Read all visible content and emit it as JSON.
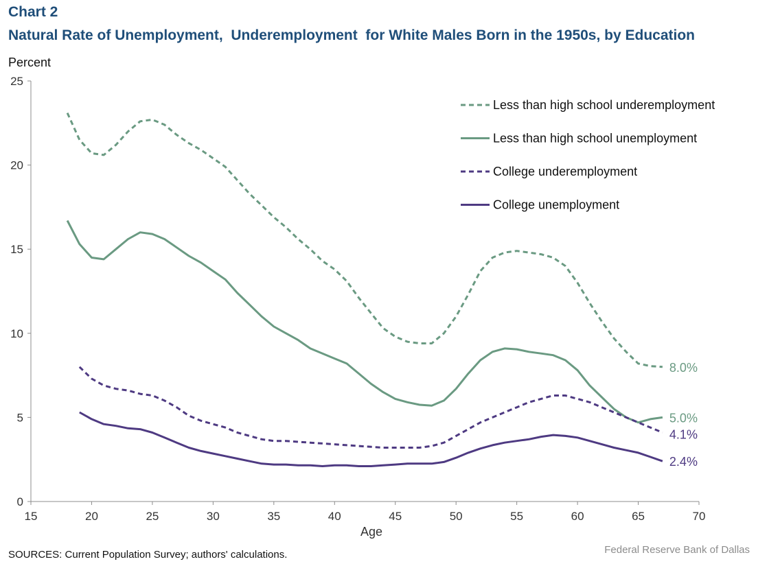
{
  "header": {
    "chart_label": "Chart 2",
    "title": "Natural Rate of Unemployment,  Underemployment  for White Males Born in the 1950s, by Education"
  },
  "footer": {
    "source": "SOURCES:  Current Population Survey; authors' calculations.",
    "credit": "Federal Reserve  Bank of Dallas"
  },
  "chart_data": {
    "type": "line",
    "ylabel": "Percent",
    "xlabel": "Age",
    "xlim": [
      15,
      70
    ],
    "ylim": [
      0,
      25
    ],
    "x_ticks": [
      15,
      20,
      25,
      30,
      35,
      40,
      45,
      50,
      55,
      60,
      65,
      70
    ],
    "y_ticks": [
      0,
      5,
      10,
      15,
      20,
      25
    ],
    "grid": false,
    "legend_position": "top-right",
    "series": [
      {
        "name": "Less than high school underemployment",
        "color": "#6a9a82",
        "dash": true,
        "end_label": "8.0%",
        "x": [
          18,
          19,
          20,
          21,
          22,
          23,
          24,
          25,
          26,
          27,
          28,
          29,
          30,
          31,
          32,
          33,
          34,
          35,
          36,
          37,
          38,
          39,
          40,
          41,
          42,
          43,
          44,
          45,
          46,
          47,
          48,
          49,
          50,
          51,
          52,
          53,
          54,
          55,
          56,
          57,
          58,
          59,
          60,
          61,
          62,
          63,
          64,
          65,
          66,
          67
        ],
        "values": [
          23.1,
          21.5,
          20.7,
          20.6,
          21.2,
          22.0,
          22.6,
          22.7,
          22.4,
          21.8,
          21.3,
          20.9,
          20.4,
          19.9,
          19.1,
          18.3,
          17.6,
          16.9,
          16.3,
          15.6,
          15.0,
          14.3,
          13.8,
          13.1,
          12.1,
          11.2,
          10.3,
          9.8,
          9.5,
          9.4,
          9.4,
          10.0,
          11.0,
          12.3,
          13.7,
          14.5,
          14.8,
          14.9,
          14.8,
          14.7,
          14.5,
          14.0,
          13.0,
          11.8,
          10.7,
          9.7,
          8.9,
          8.2,
          8.05,
          8.0
        ]
      },
      {
        "name": "Less than high school unemployment",
        "color": "#6a9a82",
        "dash": false,
        "end_label": "5.0%",
        "x": [
          18,
          19,
          20,
          21,
          22,
          23,
          24,
          25,
          26,
          27,
          28,
          29,
          30,
          31,
          32,
          33,
          34,
          35,
          36,
          37,
          38,
          39,
          40,
          41,
          42,
          43,
          44,
          45,
          46,
          47,
          48,
          49,
          50,
          51,
          52,
          53,
          54,
          55,
          56,
          57,
          58,
          59,
          60,
          61,
          62,
          63,
          64,
          65,
          66,
          67
        ],
        "values": [
          16.7,
          15.3,
          14.5,
          14.4,
          15.0,
          15.6,
          16.0,
          15.9,
          15.6,
          15.1,
          14.6,
          14.2,
          13.7,
          13.2,
          12.4,
          11.7,
          11.0,
          10.4,
          10.0,
          9.6,
          9.1,
          8.8,
          8.5,
          8.2,
          7.6,
          7.0,
          6.5,
          6.1,
          5.9,
          5.75,
          5.7,
          6.0,
          6.7,
          7.6,
          8.4,
          8.9,
          9.1,
          9.05,
          8.9,
          8.8,
          8.7,
          8.4,
          7.8,
          6.9,
          6.2,
          5.5,
          5.0,
          4.7,
          4.9,
          5.0
        ]
      },
      {
        "name": "College underemployment",
        "color": "#4e3a82",
        "dash": true,
        "end_label": "4.1%",
        "x": [
          19,
          20,
          21,
          22,
          23,
          24,
          25,
          26,
          27,
          28,
          29,
          30,
          31,
          32,
          33,
          34,
          35,
          36,
          37,
          38,
          39,
          40,
          41,
          42,
          43,
          44,
          45,
          46,
          47,
          48,
          49,
          50,
          51,
          52,
          53,
          54,
          55,
          56,
          57,
          58,
          59,
          60,
          61,
          62,
          63,
          64,
          65,
          66,
          67
        ],
        "values": [
          8.0,
          7.3,
          6.9,
          6.7,
          6.6,
          6.4,
          6.3,
          6.0,
          5.6,
          5.1,
          4.8,
          4.6,
          4.4,
          4.1,
          3.9,
          3.7,
          3.6,
          3.6,
          3.55,
          3.5,
          3.45,
          3.4,
          3.35,
          3.3,
          3.25,
          3.2,
          3.2,
          3.2,
          3.2,
          3.3,
          3.5,
          3.9,
          4.3,
          4.7,
          5.0,
          5.3,
          5.6,
          5.9,
          6.1,
          6.3,
          6.3,
          6.1,
          5.9,
          5.6,
          5.3,
          5.0,
          4.7,
          4.4,
          4.1
        ]
      },
      {
        "name": "College unemployment",
        "color": "#4e3a82",
        "dash": false,
        "end_label": "2.4%",
        "x": [
          19,
          20,
          21,
          22,
          23,
          24,
          25,
          26,
          27,
          28,
          29,
          30,
          31,
          32,
          33,
          34,
          35,
          36,
          37,
          38,
          39,
          40,
          41,
          42,
          43,
          44,
          45,
          46,
          47,
          48,
          49,
          50,
          51,
          52,
          53,
          54,
          55,
          56,
          57,
          58,
          59,
          60,
          61,
          62,
          63,
          64,
          65,
          66,
          67
        ],
        "values": [
          5.3,
          4.9,
          4.6,
          4.5,
          4.35,
          4.3,
          4.1,
          3.8,
          3.5,
          3.2,
          3.0,
          2.85,
          2.7,
          2.55,
          2.4,
          2.25,
          2.2,
          2.2,
          2.15,
          2.15,
          2.1,
          2.15,
          2.15,
          2.1,
          2.1,
          2.15,
          2.2,
          2.25,
          2.25,
          2.25,
          2.35,
          2.6,
          2.9,
          3.15,
          3.35,
          3.5,
          3.6,
          3.7,
          3.85,
          3.95,
          3.9,
          3.8,
          3.6,
          3.4,
          3.2,
          3.05,
          2.9,
          2.65,
          2.4
        ]
      }
    ]
  }
}
